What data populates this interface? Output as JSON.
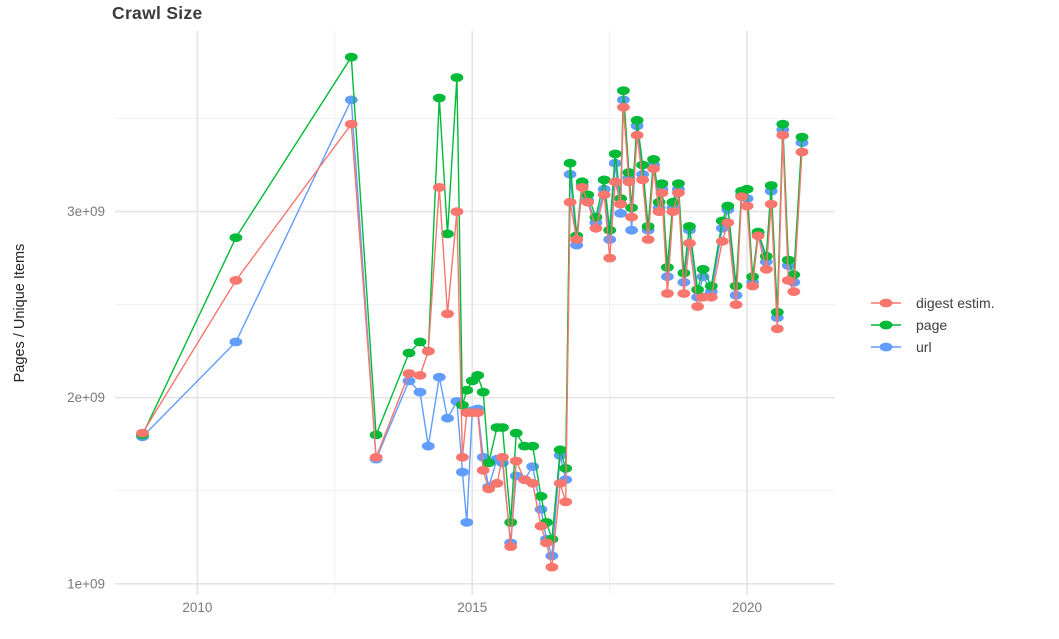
{
  "chart_data": {
    "type": "line",
    "title": "Crawl Size",
    "xlabel": "",
    "ylabel": "Pages / Unique Items",
    "legend_position": "right",
    "grid": true,
    "background": "#ffffff",
    "major_grid_color": "#e4e4e4",
    "minor_grid_color": "#f0f0f0",
    "values_unit": "1e9",
    "xlim": [
      2008.5,
      2021.6
    ],
    "ylim": [
      0.94,
      3.97
    ],
    "x_ticks": [
      {
        "value": 2010,
        "label": "2010"
      },
      {
        "value": 2015,
        "label": "2015"
      },
      {
        "value": 2020,
        "label": "2020"
      }
    ],
    "x_minor_ticks": [
      2012.5,
      2017.5
    ],
    "y_ticks": [
      {
        "value": 1,
        "label": "1e+09"
      },
      {
        "value": 2,
        "label": "2e+09"
      },
      {
        "value": 3,
        "label": "3e+09"
      }
    ],
    "y_minor_ticks": [
      1.5,
      2.5,
      3.5
    ],
    "x": [
      2009.0,
      2010.7,
      2012.8,
      2013.25,
      2013.85,
      2014.05,
      2014.2,
      2014.4,
      2014.55,
      2014.72,
      2014.82,
      2014.9,
      2015.0,
      2015.1,
      2015.2,
      2015.3,
      2015.45,
      2015.55,
      2015.7,
      2015.8,
      2015.95,
      2016.1,
      2016.25,
      2016.35,
      2016.45,
      2016.6,
      2016.7,
      2016.78,
      2016.9,
      2017.0,
      2017.1,
      2017.25,
      2017.4,
      2017.5,
      2017.6,
      2017.7,
      2017.75,
      2017.85,
      2017.9,
      2018.0,
      2018.1,
      2018.2,
      2018.3,
      2018.4,
      2018.45,
      2018.55,
      2018.65,
      2018.75,
      2018.85,
      2018.95,
      2019.1,
      2019.2,
      2019.35,
      2019.55,
      2019.65,
      2019.8,
      2019.9,
      2020.0,
      2020.1,
      2020.2,
      2020.35,
      2020.44,
      2020.55,
      2020.65,
      2020.75,
      2020.85,
      2021.0
    ],
    "series": [
      {
        "name": "digest estim.",
        "color": "#F8766D",
        "values": [
          1.81,
          2.63,
          3.47,
          1.68,
          2.13,
          2.12,
          2.25,
          3.13,
          2.45,
          3.0,
          1.68,
          1.92,
          1.92,
          1.92,
          1.61,
          1.51,
          1.54,
          1.68,
          1.2,
          1.66,
          1.56,
          1.54,
          1.31,
          1.22,
          1.09,
          1.54,
          1.44,
          3.05,
          2.85,
          3.13,
          3.05,
          2.91,
          3.09,
          2.75,
          3.16,
          3.04,
          3.56,
          3.16,
          2.97,
          3.41,
          3.17,
          2.85,
          3.23,
          3.0,
          3.1,
          2.56,
          3.0,
          3.1,
          2.56,
          2.83,
          2.49,
          2.54,
          2.54,
          2.84,
          2.94,
          2.5,
          3.08,
          3.03,
          2.6,
          2.87,
          2.69,
          3.04,
          2.37,
          3.41,
          2.63,
          2.57,
          3.32
        ]
      },
      {
        "name": "page",
        "color": "#00BA38",
        "values": [
          1.8,
          2.86,
          3.83,
          1.8,
          2.24,
          2.3,
          2.25,
          3.61,
          2.88,
          3.72,
          1.96,
          2.04,
          2.09,
          2.12,
          2.03,
          1.65,
          1.84,
          1.84,
          1.33,
          1.81,
          1.74,
          1.74,
          1.47,
          1.33,
          1.24,
          1.72,
          1.62,
          3.26,
          2.87,
          3.16,
          3.09,
          2.97,
          3.17,
          2.9,
          3.31,
          3.07,
          3.65,
          3.21,
          3.02,
          3.49,
          3.25,
          2.92,
          3.28,
          3.05,
          3.15,
          2.7,
          3.05,
          3.15,
          2.67,
          2.92,
          2.58,
          2.69,
          2.6,
          2.95,
          3.03,
          2.6,
          3.11,
          3.12,
          2.65,
          2.89,
          2.76,
          3.14,
          2.46,
          3.47,
          2.74,
          2.66,
          3.4
        ]
      },
      {
        "name": "url",
        "color": "#619CFF",
        "values": [
          1.79,
          2.3,
          3.6,
          1.67,
          2.09,
          2.03,
          1.74,
          2.11,
          1.89,
          1.98,
          1.6,
          1.33,
          1.93,
          1.94,
          1.68,
          1.52,
          1.67,
          1.65,
          1.22,
          1.58,
          1.56,
          1.63,
          1.4,
          1.24,
          1.15,
          1.69,
          1.56,
          3.2,
          2.82,
          3.14,
          3.06,
          2.94,
          3.12,
          2.85,
          3.26,
          2.99,
          3.6,
          3.18,
          2.9,
          3.46,
          3.2,
          2.9,
          3.25,
          3.02,
          3.12,
          2.65,
          3.02,
          3.12,
          2.62,
          2.9,
          2.54,
          2.65,
          2.57,
          2.91,
          3.01,
          2.55,
          3.09,
          3.07,
          2.62,
          2.88,
          2.73,
          3.11,
          2.43,
          3.44,
          2.71,
          2.62,
          3.37
        ]
      }
    ]
  }
}
